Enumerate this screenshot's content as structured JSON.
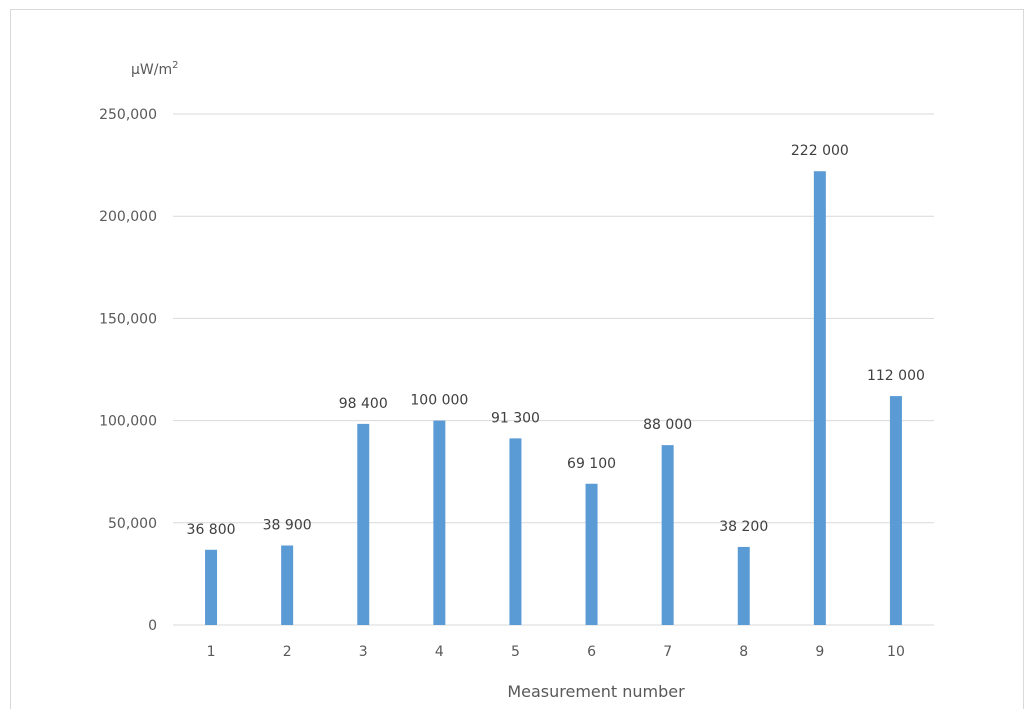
{
  "chart_data": {
    "type": "bar",
    "categories": [
      "1",
      "2",
      "3",
      "4",
      "5",
      "6",
      "7",
      "8",
      "9",
      "10"
    ],
    "values": [
      36800,
      38900,
      98400,
      100000,
      91300,
      69100,
      88000,
      38200,
      222000,
      112000
    ],
    "data_labels": [
      "36 800",
      "38 900",
      "98 400",
      "100 000",
      "91 300",
      "69 100",
      "88 000",
      "38 200",
      "222 000",
      "112 000"
    ],
    "title": "",
    "xlabel": "Measurement number",
    "ylabel_unit": "μW/m",
    "ylabel_unit_superscript": "2",
    "ylim": [
      0,
      250000
    ],
    "yticks": [
      0,
      50000,
      100000,
      150000,
      200000,
      250000
    ],
    "ytick_labels": [
      "0",
      "50,000",
      "100,000",
      "150,000",
      "200,000",
      "250,000"
    ],
    "grid": true,
    "legend": false,
    "bar_color": "#5b9bd5",
    "grid_color": "#d9d9d9"
  }
}
